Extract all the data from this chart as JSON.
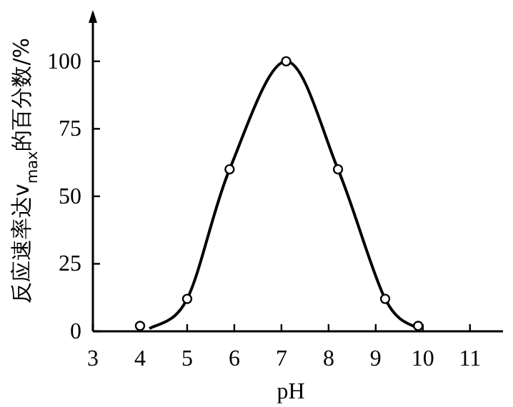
{
  "chart_data": {
    "type": "line",
    "xlabel": "pH",
    "ylabel": "反应速率达v$_{max}$的百分数/%",
    "xlim": [
      3,
      11.7
    ],
    "ylim": [
      0,
      119
    ],
    "xticks": [
      3,
      4,
      5,
      6,
      7,
      8,
      9,
      10,
      11
    ],
    "yticks": [
      0,
      25,
      50,
      75,
      100
    ],
    "series": [
      {
        "type": "line",
        "color": "#000000",
        "x": [
          4.2,
          5,
          5.9,
          7.1,
          8.2,
          9.2,
          9.9
        ],
        "values": [
          1,
          12,
          60,
          100,
          60,
          12,
          1
        ]
      },
      {
        "type": "scatter",
        "color": "#000000",
        "marker": "circle",
        "x": [
          4,
          5,
          5.9,
          7.1,
          8.2,
          9.2,
          9.9
        ],
        "values": [
          2,
          12,
          60,
          100,
          60,
          12,
          2
        ]
      }
    ]
  }
}
